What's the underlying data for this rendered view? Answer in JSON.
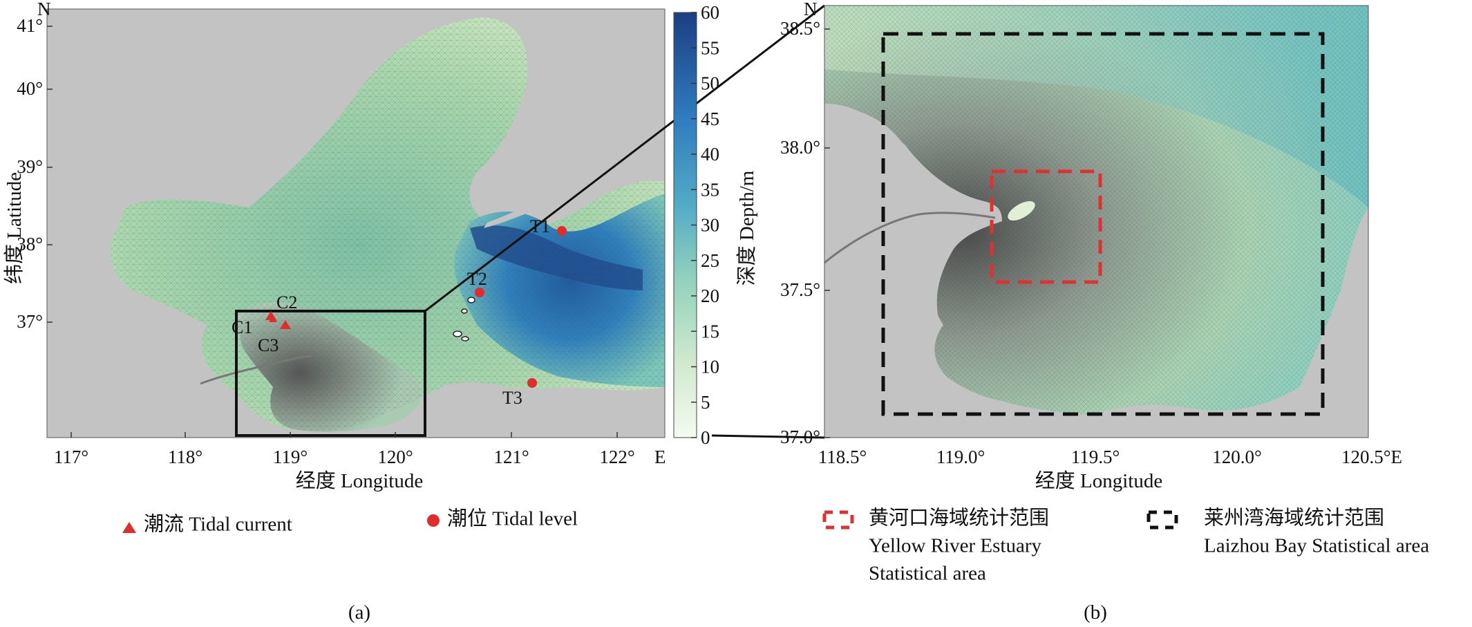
{
  "panel_a": {
    "caption": "(a)",
    "north": "N",
    "east": "E",
    "x_axis_title": "经度 Longitude",
    "y_axis_title": "纬度 Latitude",
    "x_ticks": [
      "117°",
      "118°",
      "119°",
      "120°",
      "121°",
      "122°"
    ],
    "y_ticks": [
      "41°",
      "40°",
      "39°",
      "38°",
      "37°"
    ],
    "colorbar_title": "深度 Depth/m",
    "colorbar_ticks": [
      "60",
      "55",
      "50",
      "45",
      "40",
      "35",
      "30",
      "25",
      "20",
      "15",
      "10",
      "5",
      "0"
    ],
    "stations": {
      "T1": "T1",
      "T2": "T2",
      "T3": "T3",
      "C1": "C1",
      "C2": "C2",
      "C3": "C3"
    }
  },
  "panel_b": {
    "caption": "(b)",
    "north": "N",
    "x_axis_title": "经度 Longitude",
    "x_ticks": [
      "118.5°",
      "119.0°",
      "119.5°",
      "120.0°",
      "120.5°E"
    ],
    "y_ticks": [
      "38.5°",
      "38.0°",
      "37.5°",
      "37.0°"
    ]
  },
  "legend": {
    "tidal_current": "潮流 Tidal current",
    "tidal_level": "潮位 Tidal level",
    "yellow_river_line1": "黄河口海域统计范围",
    "yellow_river_line2": "Yellow River Estuary",
    "yellow_river_line3": "Statistical area",
    "laizhou_line1": "莱州湾海域统计范围",
    "laizhou_line2": "Laizhou Bay Statistical area"
  },
  "colors": {
    "land": "#c3c3c3",
    "shallow": "#dff0dc",
    "mid": "#7cc4b8",
    "deep": "#1e4f8c",
    "station": "#e02c2c",
    "yellow_box": "#e03030",
    "laizhou_box": "#111111"
  }
}
